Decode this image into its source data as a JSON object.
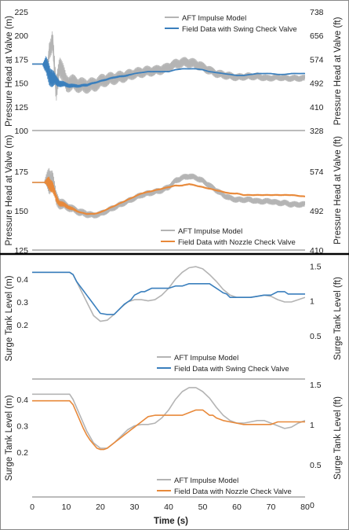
{
  "colors": {
    "model": "#b4b4b4",
    "swing": "#3a7fbd",
    "nozzle": "#e8893a",
    "divider": "#000000",
    "axis": "#555555"
  },
  "x_axis": {
    "label": "Time (s)",
    "ticks": [
      0,
      10,
      20,
      30,
      40,
      50,
      60,
      70,
      80
    ]
  },
  "chart_data": [
    {
      "type": "line",
      "panel": "head-swing",
      "ylabel": "Pressure Head at Valve (m)",
      "ylabel_right": "Pressure Head at Valve (ft)",
      "ylim": [
        100,
        225
      ],
      "yticks": [
        100,
        125,
        150,
        175,
        200,
        225
      ],
      "yticks_right": [
        {
          "value": 328,
          "pos": 100
        },
        {
          "value": 410,
          "pos": 125
        },
        {
          "value": 492,
          "pos": 150
        },
        {
          "value": 574,
          "pos": 175
        },
        {
          "value": 656,
          "pos": 200
        },
        {
          "value": 738,
          "pos": 225
        }
      ],
      "legend": "top-right",
      "series": [
        {
          "name": "AFT Impulse Model",
          "color_key": "model",
          "x": [
            0,
            3.5,
            4.5,
            5,
            6,
            7,
            8,
            10,
            12,
            15,
            18,
            21,
            24,
            27,
            30,
            33,
            36,
            39,
            42,
            45,
            48,
            51,
            54,
            57,
            60,
            63,
            66,
            69,
            72,
            75,
            80
          ],
          "y": [
            170,
            170,
            165,
            185,
            195,
            140,
            170,
            150,
            150,
            147,
            148,
            153,
            155,
            157,
            160,
            162,
            163,
            165,
            170,
            172,
            170,
            165,
            160,
            158,
            156,
            157,
            157,
            155,
            156,
            155,
            155
          ],
          "band": [
            0,
            0,
            10,
            20,
            25,
            30,
            25,
            20,
            18,
            17,
            16,
            15,
            14,
            13,
            12,
            12,
            11,
            11,
            11,
            11,
            11,
            10,
            9,
            9,
            8,
            8,
            8,
            7,
            7,
            7,
            7
          ]
        },
        {
          "name": "Field Data with Swing Check Valve",
          "color_key": "swing",
          "x": [
            0,
            3,
            4,
            5,
            6,
            7,
            8,
            10,
            12,
            14,
            16,
            18,
            20,
            22,
            24,
            26,
            28,
            30,
            32,
            34,
            36,
            38,
            40,
            42,
            44,
            46,
            48,
            50,
            52,
            54,
            56,
            58,
            60,
            62,
            64,
            66,
            68,
            70,
            72,
            74,
            76,
            78,
            80
          ],
          "y": [
            170,
            170,
            168,
            160,
            155,
            152,
            150,
            148,
            147,
            147,
            148,
            150,
            152,
            154,
            156,
            157,
            158,
            160,
            161,
            162,
            162,
            162,
            162,
            164,
            165,
            165,
            165,
            164,
            162,
            161,
            160,
            159,
            158,
            158,
            159,
            160,
            160,
            160,
            159,
            159,
            160,
            160,
            160
          ],
          "band": [
            0,
            0,
            20,
            25,
            20,
            12,
            8,
            5,
            4,
            3,
            3,
            2,
            2,
            2,
            2,
            2,
            2,
            1,
            1,
            1,
            1,
            1,
            1,
            1,
            1,
            1,
            1,
            1,
            1,
            1,
            1,
            1,
            1,
            1,
            1,
            1,
            1,
            1,
            1,
            1,
            1,
            1,
            1
          ]
        }
      ]
    },
    {
      "type": "line",
      "panel": "head-nozzle",
      "ylabel": "Pressure Head at Valve (m)",
      "ylabel_right": "Pressure Head at Valve (ft)",
      "ylim": [
        125,
        185
      ],
      "yticks": [
        125,
        150,
        175
      ],
      "yticks_right": [
        {
          "value": 410,
          "pos": 125
        },
        {
          "value": 492,
          "pos": 150
        },
        {
          "value": 574,
          "pos": 175
        }
      ],
      "legend": "bottom-center",
      "series": [
        {
          "name": "AFT Impulse Model",
          "color_key": "model",
          "x": [
            0,
            3.5,
            5,
            6,
            7,
            8,
            10,
            12,
            14,
            16,
            18,
            20,
            22,
            24,
            26,
            28,
            30,
            32,
            34,
            36,
            38,
            40,
            42,
            44,
            46,
            48,
            50,
            52,
            54,
            56,
            58,
            60,
            62,
            64,
            66,
            68,
            70,
            72,
            74,
            76,
            80
          ],
          "y": [
            168,
            168,
            170,
            170,
            158,
            155,
            153,
            151,
            149,
            148,
            147,
            148,
            150,
            152,
            154,
            156,
            158,
            160,
            161,
            162,
            163,
            165,
            169,
            171,
            172,
            171,
            169,
            166,
            163,
            160,
            158,
            157,
            157,
            157,
            156,
            156,
            156,
            155,
            155,
            154,
            154
          ],
          "band": [
            0,
            0,
            20,
            12,
            10,
            8,
            6,
            5,
            5,
            5,
            4,
            4,
            4,
            4,
            4,
            4,
            4,
            4,
            4,
            4,
            4,
            4,
            4,
            4,
            4,
            4,
            4,
            4,
            4,
            4,
            4,
            4,
            4,
            4,
            4,
            4,
            4,
            4,
            4,
            4,
            4
          ]
        },
        {
          "name": "Field Data with Nozzle Check Valve",
          "color_key": "nozzle",
          "x": [
            0,
            3.5,
            5,
            6,
            7,
            8,
            10,
            12,
            14,
            16,
            18,
            20,
            22,
            24,
            26,
            28,
            30,
            32,
            34,
            36,
            38,
            40,
            42,
            44,
            46,
            48,
            50,
            52,
            54,
            56,
            58,
            60,
            62,
            64,
            66,
            68,
            70,
            72,
            74,
            76,
            80
          ],
          "y": [
            168,
            168,
            168,
            165,
            158,
            155,
            153,
            151,
            149,
            148,
            148,
            149,
            151,
            153,
            155,
            157,
            159,
            161,
            162,
            163,
            164,
            165,
            166,
            166,
            167,
            166,
            165,
            164,
            163,
            162,
            161,
            161,
            160,
            160,
            160,
            160,
            160,
            160,
            160,
            160,
            159
          ],
          "band": [
            0,
            0,
            10,
            8,
            6,
            4,
            3,
            2,
            1,
            1,
            1,
            1,
            1,
            1,
            1,
            1,
            1,
            1,
            1,
            1,
            1,
            1,
            1,
            1,
            1,
            1,
            1,
            1,
            1,
            1,
            1,
            1,
            1,
            1,
            1,
            1,
            1,
            1,
            1,
            1,
            1
          ]
        }
      ]
    },
    {
      "type": "line",
      "panel": "tank-swing",
      "ylabel": "Surge Tank Level (m)",
      "ylabel_right": "Surge Tank Level (ft)",
      "ylim": [
        0.05,
        0.46
      ],
      "yticks": [
        0.2,
        0.3,
        0.4
      ],
      "yticks_right": [
        {
          "value": "0.5",
          "pos": 0.1524
        },
        {
          "value": "1",
          "pos": 0.3048
        },
        {
          "value": "1.5",
          "pos": 0.4572
        }
      ],
      "legend": "bottom-center",
      "series": [
        {
          "name": "AFT Impulse Model",
          "color_key": "model",
          "x": [
            0,
            11,
            12,
            14,
            16,
            18,
            20,
            22,
            24,
            26,
            28,
            30,
            32,
            34,
            36,
            38,
            40,
            42,
            44,
            46,
            48,
            50,
            52,
            54,
            56,
            58,
            60,
            62,
            64,
            66,
            68,
            70,
            72,
            74,
            76,
            78,
            80
          ],
          "y": [
            0.43,
            0.43,
            0.42,
            0.36,
            0.3,
            0.24,
            0.215,
            0.22,
            0.245,
            0.275,
            0.3,
            0.31,
            0.31,
            0.305,
            0.31,
            0.33,
            0.36,
            0.4,
            0.43,
            0.45,
            0.455,
            0.445,
            0.42,
            0.39,
            0.355,
            0.33,
            0.32,
            0.32,
            0.32,
            0.325,
            0.33,
            0.325,
            0.31,
            0.3,
            0.3,
            0.31,
            0.32
          ]
        },
        {
          "name": "Field Data with Swing Check Valve",
          "color_key": "swing",
          "x": [
            0,
            11,
            12,
            13,
            14,
            15,
            16,
            17,
            18,
            19,
            20,
            22,
            24,
            25,
            26,
            27,
            28,
            29,
            30,
            32,
            33,
            35,
            36,
            40,
            42,
            44,
            46,
            48,
            52,
            53,
            54,
            55,
            56,
            57,
            58,
            60,
            64,
            66,
            68,
            70,
            72,
            73,
            74,
            75,
            80
          ],
          "y": [
            0.43,
            0.43,
            0.42,
            0.39,
            0.37,
            0.35,
            0.33,
            0.31,
            0.29,
            0.27,
            0.25,
            0.245,
            0.245,
            0.26,
            0.275,
            0.29,
            0.3,
            0.31,
            0.33,
            0.345,
            0.345,
            0.36,
            0.36,
            0.36,
            0.37,
            0.37,
            0.38,
            0.38,
            0.38,
            0.37,
            0.36,
            0.35,
            0.34,
            0.335,
            0.32,
            0.32,
            0.32,
            0.325,
            0.33,
            0.33,
            0.345,
            0.345,
            0.345,
            0.335,
            0.335
          ]
        }
      ]
    },
    {
      "type": "line",
      "panel": "tank-nozzle",
      "ylabel": "Surge Tank Level (m)",
      "ylabel_right": "Surge Tank Level (ft)",
      "ylim": [
        0.06,
        0.46
      ],
      "yticks": [
        0.2,
        0.3,
        0.4
      ],
      "yticks_right": [
        {
          "value": "0",
          "pos": 0.0
        },
        {
          "value": "0.5",
          "pos": 0.1524
        },
        {
          "value": "1",
          "pos": 0.3048
        },
        {
          "value": "1.5",
          "pos": 0.4572
        }
      ],
      "legend": "bottom-center",
      "series": [
        {
          "name": "AFT Impulse Model",
          "color_key": "model",
          "x": [
            0,
            11,
            12,
            14,
            16,
            18,
            20,
            22,
            24,
            26,
            28,
            30,
            32,
            34,
            36,
            38,
            40,
            42,
            44,
            46,
            48,
            50,
            52,
            54,
            56,
            58,
            60,
            62,
            64,
            66,
            68,
            70,
            72,
            74,
            76,
            78,
            80
          ],
          "y": [
            0.42,
            0.42,
            0.4,
            0.34,
            0.28,
            0.235,
            0.215,
            0.215,
            0.235,
            0.26,
            0.285,
            0.3,
            0.305,
            0.305,
            0.31,
            0.33,
            0.36,
            0.4,
            0.43,
            0.445,
            0.445,
            0.43,
            0.405,
            0.37,
            0.34,
            0.32,
            0.31,
            0.31,
            0.315,
            0.32,
            0.32,
            0.31,
            0.3,
            0.29,
            0.295,
            0.31,
            0.32
          ]
        },
        {
          "name": "Field Data with Nozzle Check Valve",
          "color_key": "nozzle",
          "x": [
            0,
            11,
            12,
            13,
            14,
            15,
            16,
            17,
            18,
            19,
            20,
            21,
            22,
            23,
            24,
            25,
            26,
            27,
            28,
            29,
            30,
            31,
            32,
            33,
            34,
            36,
            40,
            44,
            46,
            48,
            50,
            51,
            52,
            53,
            54,
            55,
            56,
            58,
            62,
            64,
            66,
            68,
            70,
            72,
            74,
            76,
            80
          ],
          "y": [
            0.395,
            0.395,
            0.38,
            0.35,
            0.32,
            0.29,
            0.265,
            0.245,
            0.23,
            0.215,
            0.21,
            0.21,
            0.215,
            0.225,
            0.235,
            0.245,
            0.255,
            0.265,
            0.275,
            0.285,
            0.295,
            0.305,
            0.315,
            0.325,
            0.335,
            0.34,
            0.34,
            0.34,
            0.35,
            0.36,
            0.36,
            0.35,
            0.34,
            0.34,
            0.33,
            0.325,
            0.32,
            0.315,
            0.305,
            0.305,
            0.305,
            0.305,
            0.305,
            0.315,
            0.315,
            0.315,
            0.315
          ]
        }
      ]
    }
  ]
}
